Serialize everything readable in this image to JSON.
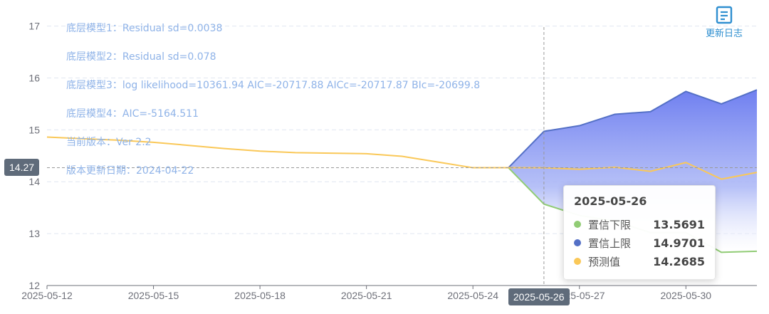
{
  "info_lines": [
    "底层模型1：Residual sd=0.0038",
    "底层模型2：Residual sd=0.078",
    "底层模型3：log likelihood=10361.94 AIC=-20717.88 AICc=-20717.87 BIc=-20699.8",
    "底层模型4：AIC=-5164.511",
    "当前版本：Ver 2.2",
    "版本更新日期：2024-04-22"
  ],
  "changelog": {
    "label": "更新日志",
    "icon": "document-icon"
  },
  "crosshair": {
    "y_label": "14.27",
    "y_value": 14.27,
    "x_label": "2025-05-26",
    "x_index": 14
  },
  "tooltip": {
    "title": "2025-05-26",
    "rows": [
      {
        "name": "置信下限",
        "value": "13.5691",
        "color": "#91cc75"
      },
      {
        "name": "置信上限",
        "value": "14.9701",
        "color": "#5470c6"
      },
      {
        "name": "预测值",
        "value": "14.2685",
        "color": "#fac858"
      }
    ]
  },
  "chart_data": {
    "type": "line",
    "x": [
      "2025-05-12",
      "2025-05-13",
      "2025-05-14",
      "2025-05-15",
      "2025-05-16",
      "2025-05-17",
      "2025-05-18",
      "2025-05-19",
      "2025-05-20",
      "2025-05-21",
      "2025-05-22",
      "2025-05-23",
      "2025-05-24",
      "2025-05-25",
      "2025-05-26",
      "2025-05-27",
      "2025-05-28",
      "2025-05-29",
      "2025-05-30",
      "2025-05-31",
      "2025-06-01"
    ],
    "x_tick_labels": [
      "2025-05-12",
      "2025-05-15",
      "2025-05-18",
      "2025-05-21",
      "2025-05-24",
      "2025-05-27",
      "2025-05-30"
    ],
    "x_tick_label_indices": [
      0,
      3,
      6,
      9,
      12,
      15,
      18
    ],
    "y_ticks": [
      12,
      13,
      14,
      15,
      16,
      17
    ],
    "ylim": [
      12,
      17.2
    ],
    "grid": true,
    "series": [
      {
        "name": "预测值",
        "color": "#fac858",
        "values": [
          14.86,
          14.83,
          14.8,
          14.76,
          14.7,
          14.64,
          14.59,
          14.56,
          14.55,
          14.54,
          14.49,
          14.38,
          14.27,
          14.27,
          14.2685,
          14.24,
          14.28,
          14.2,
          14.37,
          14.05,
          14.18
        ]
      },
      {
        "name": "置信上限",
        "color": "#5470c6",
        "values": [
          null,
          null,
          null,
          null,
          null,
          null,
          null,
          null,
          null,
          null,
          null,
          null,
          null,
          14.27,
          14.9701,
          15.08,
          15.3,
          15.35,
          15.74,
          15.5,
          15.77
        ]
      },
      {
        "name": "置信下限",
        "color": "#91cc75",
        "values": [
          null,
          null,
          null,
          null,
          null,
          null,
          null,
          null,
          null,
          null,
          null,
          null,
          null,
          14.27,
          13.5691,
          13.35,
          13.24,
          13.02,
          13.02,
          12.64,
          12.66
        ]
      }
    ]
  }
}
